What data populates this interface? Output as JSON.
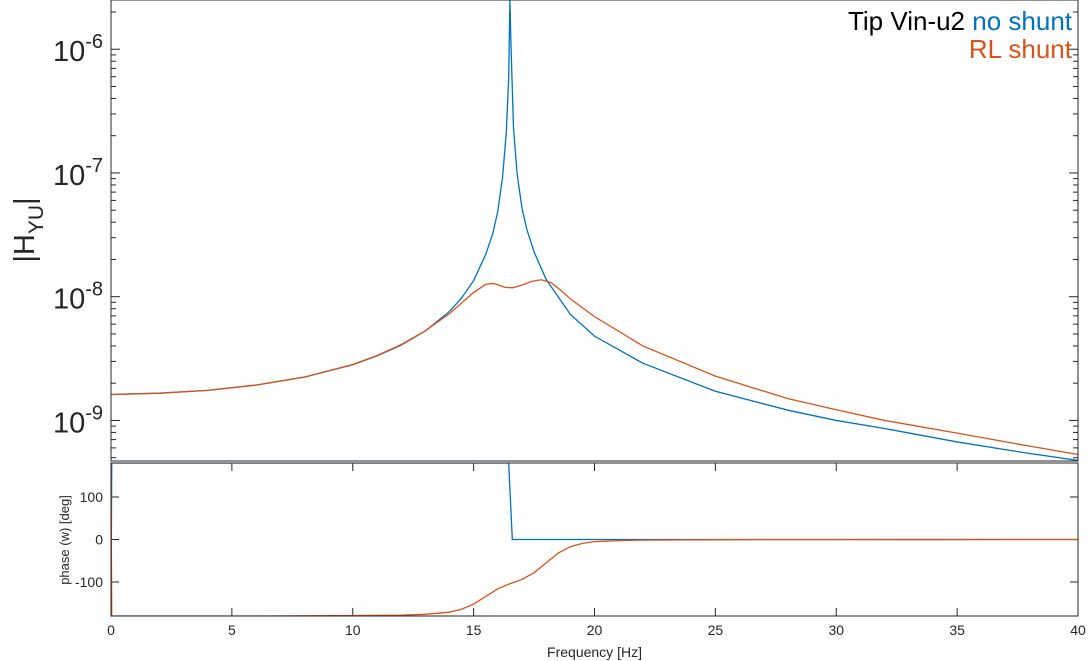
{
  "chart_data": [
    {
      "type": "line",
      "yscale": "log",
      "ylabel": "|H",
      "ylabel_sub": "YU",
      "ylabel_end": "|",
      "xlim": [
        0,
        40
      ],
      "ylim": [
        4.7e-10,
        2.5e-06
      ],
      "y_ticks": [
        {
          "value": 1e-09,
          "base": "10",
          "exp": "-9"
        },
        {
          "value": 1e-08,
          "base": "10",
          "exp": "-8"
        },
        {
          "value": 1e-07,
          "base": "10",
          "exp": "-7"
        },
        {
          "value": 1e-06,
          "base": "10",
          "exp": "-6"
        }
      ],
      "legend": {
        "title": "Tip Vin-u2",
        "position": "top-right",
        "entries": [
          "no shunt",
          "RL shunt"
        ]
      },
      "series": [
        {
          "name": "no shunt",
          "color": "#0072BD",
          "x": [
            0,
            2,
            4,
            6,
            8,
            10,
            11,
            12,
            13,
            14,
            14.5,
            15,
            15.5,
            15.8,
            16,
            16.2,
            16.35,
            16.45,
            16.5,
            16.55,
            16.65,
            16.8,
            17,
            17.2,
            17.5,
            18,
            19,
            20,
            22,
            25,
            28,
            30,
            32,
            35,
            38,
            40
          ],
          "y": [
            1.62e-09,
            1.66e-09,
            1.75e-09,
            1.93e-09,
            2.24e-09,
            2.82e-09,
            3.32e-09,
            4.06e-09,
            5.28e-09,
            7.6e-09,
            9.74e-09,
            1.35e-08,
            2.19e-08,
            3.29e-08,
            4.9e-08,
            9.4e-08,
            2.1e-07,
            5.8e-07,
            2.5e-06,
            1e-06,
            2.3e-07,
            9.8e-08,
            5.2e-08,
            3.5e-08,
            2.3e-08,
            1.38e-08,
            7.2e-09,
            4.8e-09,
            2.9e-09,
            1.72e-09,
            1.21e-09,
            1e-09,
            8.6e-10,
            6.7e-10,
            5.4e-10,
            4.75e-10
          ]
        },
        {
          "name": "RL shunt",
          "color": "#D95319",
          "x": [
            0,
            2,
            4,
            6,
            8,
            10,
            11,
            12,
            13,
            14,
            14.5,
            15,
            15.5,
            15.8,
            16,
            16.3,
            16.6,
            17,
            17.4,
            17.8,
            18.2,
            18.6,
            19,
            20,
            22,
            25,
            28,
            30,
            32,
            35,
            38,
            40
          ],
          "y": [
            1.62e-09,
            1.66e-09,
            1.75e-09,
            1.93e-09,
            2.24e-09,
            2.83e-09,
            3.34e-09,
            4.1e-09,
            5.3e-09,
            7.3e-09,
            8.9e-09,
            1.08e-08,
            1.26e-08,
            1.28e-08,
            1.25e-08,
            1.19e-08,
            1.18e-08,
            1.24e-08,
            1.33e-08,
            1.37e-08,
            1.3e-08,
            1.13e-08,
            9.6e-09,
            6.9e-09,
            4e-09,
            2.28e-09,
            1.5e-09,
            1.22e-09,
            1e-09,
            7.9e-10,
            6.2e-10,
            5.3e-10
          ]
        }
      ]
    },
    {
      "type": "line",
      "xlabel": "Frequency [Hz]",
      "ylabel": "phase (w) [deg]",
      "xlim": [
        0,
        40
      ],
      "ylim": [
        -180,
        180
      ],
      "x_ticks": [
        "0",
        "5",
        "10",
        "15",
        "20",
        "25",
        "30",
        "35",
        "40"
      ],
      "y_ticks": [
        {
          "value": -100,
          "label": "-100"
        },
        {
          "value": 0,
          "label": "0"
        },
        {
          "value": 100,
          "label": "100"
        }
      ],
      "series": [
        {
          "name": "no shunt",
          "color": "#0072BD",
          "x": [
            0,
            0.03,
            16.45,
            16.5,
            16.6,
            20,
            40
          ],
          "y": [
            -180,
            180,
            180,
            120,
            0,
            0,
            0
          ]
        },
        {
          "name": "RL shunt",
          "color": "#D95319",
          "x": [
            0,
            0.03,
            0.06,
            2,
            6,
            10,
            12,
            13,
            14,
            14.5,
            15,
            15.5,
            16,
            16.5,
            17,
            17.5,
            18,
            18.5,
            19,
            19.5,
            20,
            21,
            22,
            24,
            26,
            30,
            35,
            40
          ],
          "y": [
            180,
            -180,
            -180,
            -180,
            -180,
            -179,
            -178,
            -176,
            -171,
            -164,
            -152,
            -134,
            -116,
            -104,
            -94,
            -78,
            -55,
            -32,
            -17,
            -9,
            -5,
            -2.5,
            -1.5,
            -0.8,
            -0.4,
            -0.2,
            -0.1,
            0
          ]
        }
      ]
    }
  ]
}
